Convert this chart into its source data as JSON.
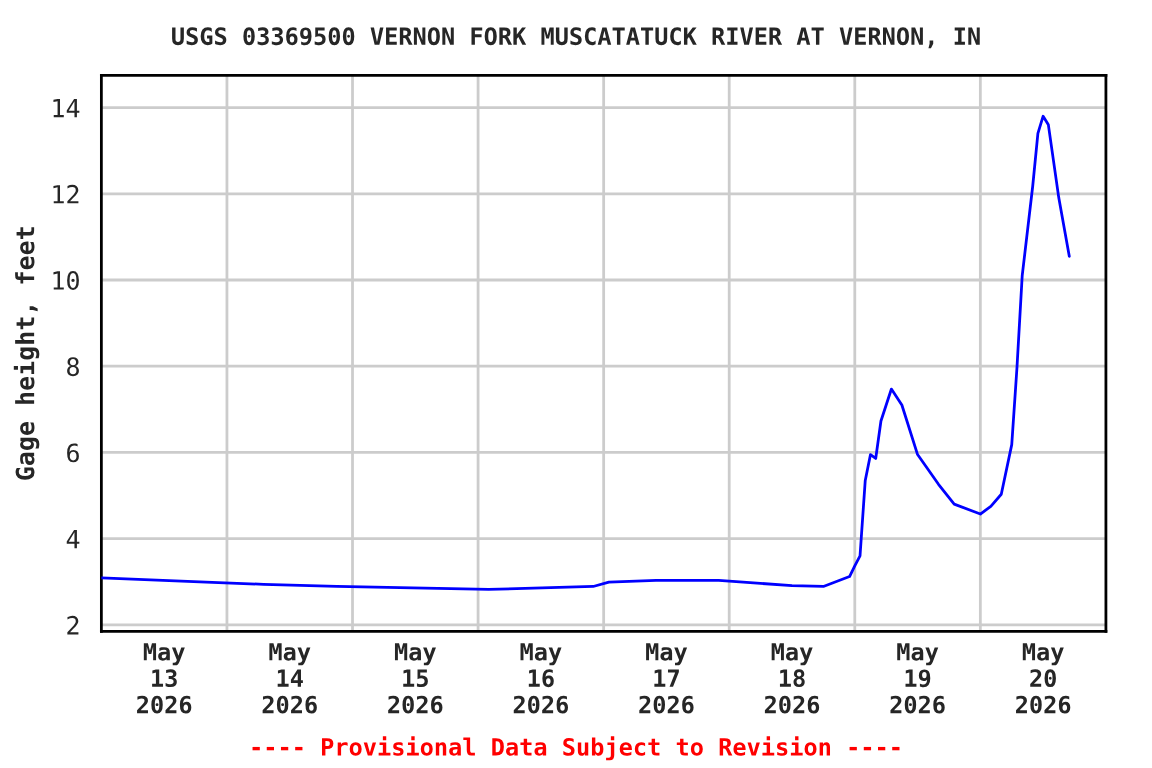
{
  "chart_data": {
    "type": "line",
    "title": "USGS 03369500 VERNON FORK MUSCATATUCK RIVER AT VERNON, IN",
    "ylabel": "Gage height, feet",
    "x": [
      "2026-05-13T00:00",
      "2026-05-13T20:00",
      "2026-05-14T07:00",
      "2026-05-14T21:00",
      "2026-05-16T02:00",
      "2026-05-16T22:00",
      "2026-05-17T01:00",
      "2026-05-17T10:00",
      "2026-05-17T22:00",
      "2026-05-18T12:00",
      "2026-05-18T18:00",
      "2026-05-18T23:00",
      "2026-05-19T00:00",
      "2026-05-19T01:00",
      "2026-05-19T02:00",
      "2026-05-19T03:00",
      "2026-05-19T04:00",
      "2026-05-19T05:00",
      "2026-05-19T07:00",
      "2026-05-19T09:00",
      "2026-05-19T12:00",
      "2026-05-19T16:00",
      "2026-05-19T19:00",
      "2026-05-20T00:00",
      "2026-05-20T02:00",
      "2026-05-20T04:00",
      "2026-05-20T06:00",
      "2026-05-20T07:00",
      "2026-05-20T08:00",
      "2026-05-20T10:00",
      "2026-05-20T11:00",
      "2026-05-20T12:00",
      "2026-05-20T13:00",
      "2026-05-20T15:00",
      "2026-05-20T17:00"
    ],
    "series": [
      {
        "color": "#0000ff",
        "values": [
          3.09,
          2.99,
          2.94,
          2.89,
          2.82,
          2.89,
          2.99,
          3.03,
          3.03,
          2.91,
          2.89,
          3.12,
          3.37,
          3.6,
          5.35,
          5.95,
          5.86,
          6.73,
          7.47,
          7.1,
          5.95,
          5.26,
          4.8,
          4.57,
          4.75,
          5.03,
          6.18,
          7.97,
          10.1,
          12.17,
          13.4,
          13.8,
          13.6,
          11.9,
          10.55
        ]
      }
    ],
    "xlim": [
      "2026-05-13T00:00",
      "2026-05-21T00:00"
    ],
    "xticks": [
      {
        "value": "2026-05-13T12:00",
        "label": "May\n13\n2026"
      },
      {
        "value": "2026-05-14T00:00",
        "label": null
      },
      {
        "value": "2026-05-14T12:00",
        "label": "May\n14\n2026"
      },
      {
        "value": "2026-05-15T00:00",
        "label": null
      },
      {
        "value": "2026-05-15T12:00",
        "label": "May\n15\n2026"
      },
      {
        "value": "2026-05-16T00:00",
        "label": null
      },
      {
        "value": "2026-05-16T12:00",
        "label": "May\n16\n2026"
      },
      {
        "value": "2026-05-17T00:00",
        "label": null
      },
      {
        "value": "2026-05-17T12:00",
        "label": "May\n17\n2026"
      },
      {
        "value": "2026-05-18T00:00",
        "label": null
      },
      {
        "value": "2026-05-18T12:00",
        "label": "May\n18\n2026"
      },
      {
        "value": "2026-05-19T00:00",
        "label": null
      },
      {
        "value": "2026-05-19T12:00",
        "label": "May\n19\n2026"
      },
      {
        "value": "2026-05-20T00:00",
        "label": null
      },
      {
        "value": "2026-05-20T12:00",
        "label": "May\n20\n2026"
      }
    ],
    "ylim": [
      1.85,
      14.75
    ],
    "yticks": [
      2,
      4,
      6,
      8,
      10,
      12,
      14
    ],
    "grid": true,
    "line_style": "solid",
    "marker": "none",
    "annotations": [
      "---- Provisional Data Subject to Revision ----"
    ]
  }
}
